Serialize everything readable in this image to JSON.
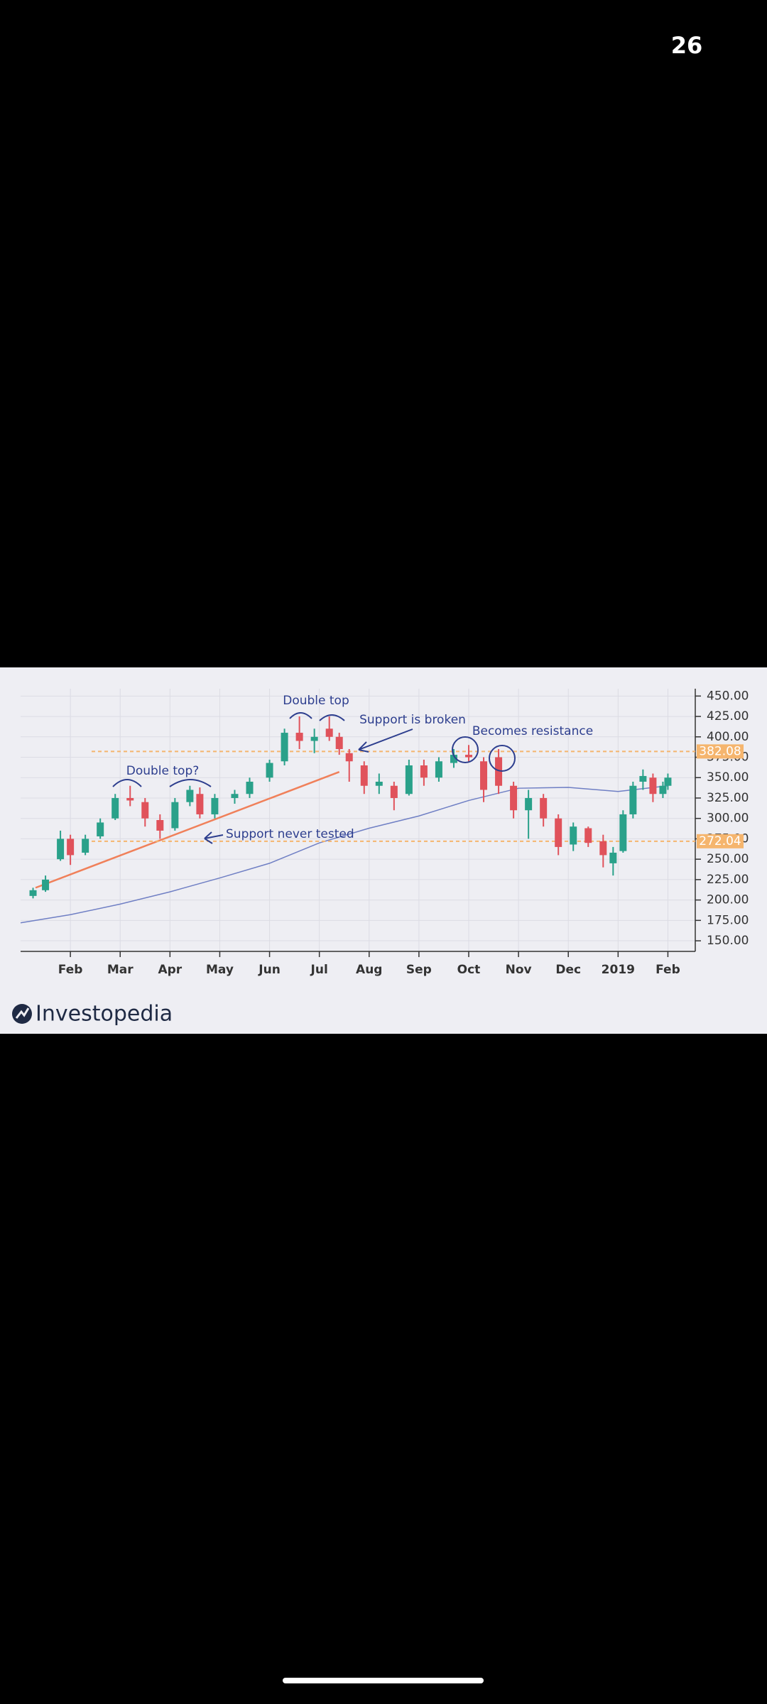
{
  "page_counter": "26",
  "brand": "Investopedia",
  "chart_data": {
    "type": "candlestick",
    "annotations": [
      "Double top?",
      "Double top",
      "Support is broken",
      "Becomes resistance",
      "Support never tested"
    ],
    "xlim": [
      0,
      13.55
    ],
    "xticks": [
      {
        "value": 1,
        "label": "Feb"
      },
      {
        "value": 2,
        "label": "Mar"
      },
      {
        "value": 3,
        "label": "Apr"
      },
      {
        "value": 4,
        "label": "May"
      },
      {
        "value": 5,
        "label": "Jun"
      },
      {
        "value": 6,
        "label": "Jul"
      },
      {
        "value": 7,
        "label": "Aug"
      },
      {
        "value": 8,
        "label": "Sep"
      },
      {
        "value": 9,
        "label": "Oct"
      },
      {
        "value": 10,
        "label": "Nov"
      },
      {
        "value": 11,
        "label": "Dec"
      },
      {
        "value": 12,
        "label": "2019"
      },
      {
        "value": 13,
        "label": "Feb"
      }
    ],
    "ylim": [
      137,
      459
    ],
    "yticks": [
      {
        "value": 150,
        "label": "150.00"
      },
      {
        "value": 175,
        "label": "175.00"
      },
      {
        "value": 200,
        "label": "200.00"
      },
      {
        "value": 225,
        "label": "225.00"
      },
      {
        "value": 250,
        "label": "250.00"
      },
      {
        "value": 275,
        "label": "275.00"
      },
      {
        "value": 300,
        "label": "300.00"
      },
      {
        "value": 325,
        "label": "325.00"
      },
      {
        "value": 350,
        "label": "350.00"
      },
      {
        "value": 375,
        "label": "375.00"
      },
      {
        "value": 400,
        "label": "400.00"
      },
      {
        "value": 425,
        "label": "425.00"
      },
      {
        "value": 450,
        "label": "450.00"
      }
    ],
    "grid": true,
    "up_color": "#2aa18a",
    "down_color": "#e0525b",
    "ohlc": {
      "x": [
        0.25,
        0.5,
        0.8,
        1.0,
        1.3,
        1.6,
        1.9,
        2.2,
        2.5,
        2.8,
        3.1,
        3.4,
        3.6,
        3.9,
        4.3,
        4.6,
        5.0,
        5.3,
        5.6,
        5.9,
        6.2,
        6.4,
        6.6,
        6.9,
        7.2,
        7.5,
        7.8,
        8.1,
        8.4,
        8.7,
        9.0,
        9.3,
        9.6,
        9.9,
        10.2,
        10.5,
        10.8,
        11.1,
        11.4,
        11.7,
        11.9,
        12.1,
        12.3,
        12.5,
        12.7,
        12.9,
        13.0
      ],
      "open": [
        205,
        212,
        250,
        275,
        258,
        278,
        300,
        325,
        320,
        298,
        288,
        320,
        330,
        305,
        325,
        330,
        350,
        370,
        405,
        395,
        410,
        400,
        380,
        365,
        340,
        340,
        330,
        365,
        350,
        368,
        378,
        370,
        375,
        340,
        310,
        325,
        300,
        268,
        288,
        272,
        245,
        260,
        305,
        345,
        350,
        330,
        340
      ],
      "high": [
        215,
        230,
        285,
        280,
        280,
        300,
        330,
        340,
        325,
        305,
        325,
        340,
        338,
        330,
        335,
        350,
        372,
        410,
        425,
        410,
        425,
        405,
        385,
        370,
        355,
        345,
        372,
        372,
        375,
        385,
        390,
        375,
        385,
        345,
        335,
        330,
        305,
        295,
        290,
        280,
        265,
        310,
        345,
        360,
        355,
        345,
        355
      ],
      "low": [
        202,
        210,
        248,
        243,
        255,
        275,
        298,
        315,
        290,
        275,
        285,
        315,
        300,
        300,
        318,
        325,
        345,
        365,
        385,
        380,
        395,
        378,
        345,
        330,
        330,
        310,
        328,
        340,
        345,
        362,
        370,
        320,
        330,
        300,
        275,
        290,
        255,
        260,
        265,
        240,
        230,
        258,
        300,
        335,
        320,
        325,
        335
      ],
      "close": [
        212,
        225,
        275,
        255,
        275,
        295,
        325,
        322,
        300,
        285,
        320,
        335,
        305,
        325,
        330,
        345,
        368,
        405,
        395,
        400,
        400,
        385,
        370,
        340,
        345,
        325,
        365,
        350,
        370,
        378,
        375,
        335,
        340,
        310,
        325,
        300,
        265,
        290,
        270,
        255,
        258,
        305,
        340,
        352,
        330,
        340,
        350
      ]
    },
    "moving_average": {
      "color": "#6f7fc4",
      "x": [
        0,
        1,
        2,
        3,
        4,
        5,
        6,
        7,
        8,
        9,
        10,
        11,
        12,
        13
      ],
      "y": [
        172,
        182,
        195,
        210,
        227,
        245,
        270,
        288,
        303,
        322,
        337,
        338,
        333,
        340
      ]
    },
    "trendline": {
      "color": "#f0805a",
      "x": [
        0.3,
        6.4
      ],
      "y": [
        215,
        357
      ]
    },
    "levels": [
      382.08,
      272.04
    ],
    "level_color": "#f5b56e"
  }
}
